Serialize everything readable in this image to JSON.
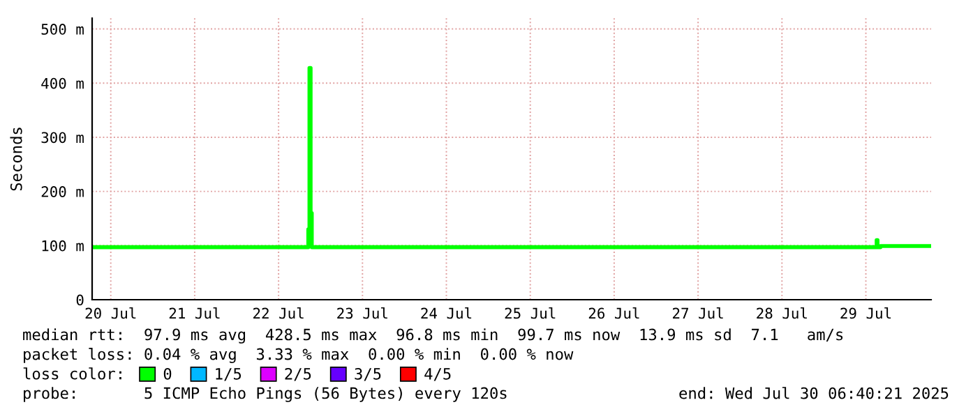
{
  "chart_data": {
    "type": "step",
    "ylabel": "Seconds",
    "legend_title": "loss color:",
    "legend": "bottom left",
    "grid": true,
    "marker": "none",
    "line_style": "solid",
    "xlim": [
      "2025-07-20T06:40",
      "2025-07-30T06:40"
    ],
    "xticks": [
      {
        "value": "2025-07-20T12:00",
        "label": "20 Jul"
      },
      {
        "value": "2025-07-21T12:00",
        "label": "21 Jul"
      },
      {
        "value": "2025-07-22T12:00",
        "label": "22 Jul"
      },
      {
        "value": "2025-07-23T12:00",
        "label": "23 Jul"
      },
      {
        "value": "2025-07-24T12:00",
        "label": "24 Jul"
      },
      {
        "value": "2025-07-25T12:00",
        "label": "25 Jul"
      },
      {
        "value": "2025-07-26T12:00",
        "label": "26 Jul"
      },
      {
        "value": "2025-07-27T12:00",
        "label": "27 Jul"
      },
      {
        "value": "2025-07-28T12:00",
        "label": "28 Jul"
      },
      {
        "value": "2025-07-29T12:00",
        "label": "29 Jul"
      }
    ],
    "ylim": [
      0,
      520
    ],
    "yticks": [
      0,
      {
        "value": 100,
        "label": "100 m"
      },
      {
        "value": 200,
        "label": "200 m"
      },
      {
        "value": 300,
        "label": "300 m"
      },
      {
        "value": 400,
        "label": "400 m"
      },
      {
        "value": 500,
        "label": "500 m"
      }
    ],
    "series": [
      {
        "name": "0",
        "color": "#00ff00",
        "x": [
          "2025-07-20T06:40",
          "2025-07-21T12:00",
          "2025-07-22T20:00",
          "2025-07-22T20:30",
          "2025-07-22T20:50",
          "2025-07-22T21:10",
          "2025-07-22T21:30",
          "2025-07-23T12:00",
          "2025-07-25T12:00",
          "2025-07-27T12:00",
          "2025-07-29T14:50",
          "2025-07-29T15:05",
          "2025-07-29T15:20",
          "2025-07-29T16:10",
          "2025-07-30T06:40"
        ],
        "values": [
          97,
          97,
          97,
          130,
          428,
          160,
          97,
          97,
          97,
          97,
          97,
          110,
          97,
          99,
          99
        ]
      },
      {
        "name": "1/5",
        "color": "#00b8ff"
      },
      {
        "name": "2/5",
        "color": "#dd00ff"
      },
      {
        "name": "3/5",
        "color": "#6600ff"
      },
      {
        "name": "4/5",
        "color": "#ff0000"
      }
    ],
    "annotations": [
      "median rtt:  97.9 ms avg  428.5 ms max  96.8 ms min  99.7 ms now  13.9 ms sd  7.1   am/s",
      "packet loss: 0.04 % avg  3.33 % max  0.00 % min  0.00 % now",
      "probe:       5 ICMP Echo Pings (56 Bytes) every 120s",
      "end: Wed Jul 30 06:40:21 2025"
    ]
  }
}
